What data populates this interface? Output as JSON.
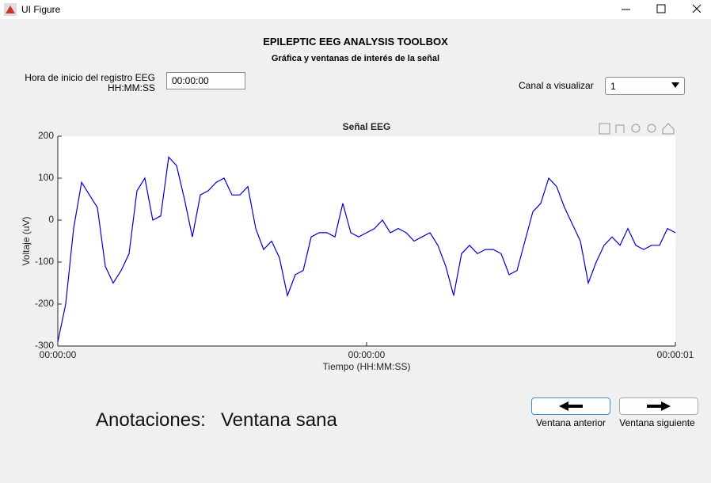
{
  "window": {
    "title": "UI Figure"
  },
  "header": {
    "title": "EPILEPTIC EEG ANALYSIS TOOLBOX",
    "subtitle": "Gráfica y ventanas de interés de la señal"
  },
  "controls": {
    "start_label": [
      "Hora de inicio del registro EEG",
      "HH:MM:SS"
    ],
    "start_value": "00:00:00",
    "channel_label": "Canal a visualizar",
    "channel_value": "1"
  },
  "chart_data": {
    "type": "line",
    "title": "Señal EEG",
    "x_label": "Tiempo (HH:MM:SS)",
    "y_label": "Voltaje (uV)",
    "x": [
      0,
      0.0128,
      0.0256,
      0.0385,
      0.0513,
      0.0641,
      0.0769,
      0.0897,
      0.1026,
      0.1154,
      0.1282,
      0.141,
      0.1538,
      0.1667,
      0.1795,
      0.1923,
      0.2051,
      0.2179,
      0.2308,
      0.2436,
      0.2564,
      0.2692,
      0.2821,
      0.2949,
      0.3077,
      0.3205,
      0.3333,
      0.3462,
      0.359,
      0.3718,
      0.3846,
      0.3974,
      0.4103,
      0.4231,
      0.4359,
      0.4487,
      0.4615,
      0.4744,
      0.4872,
      0.5,
      0.5128,
      0.5256,
      0.5385,
      0.5513,
      0.5641,
      0.5769,
      0.5897,
      0.6026,
      0.6154,
      0.6282,
      0.641,
      0.6538,
      0.6667,
      0.6795,
      0.6923,
      0.7051,
      0.7179,
      0.7308,
      0.7436,
      0.7564,
      0.7692,
      0.7821,
      0.7949,
      0.8077,
      0.8205,
      0.8333,
      0.8462,
      0.859,
      0.8718,
      0.8846,
      0.8974,
      0.9103,
      0.9231,
      0.9359,
      0.9487,
      0.9615,
      0.9744,
      0.9872,
      1
    ],
    "series": [
      {
        "color": "#0000cd",
        "values": [
          -290,
          -200,
          -20,
          90,
          60,
          30,
          -110,
          -150,
          -120,
          -80,
          70,
          100,
          0,
          10,
          150,
          130,
          50,
          -40,
          60,
          70,
          90,
          100,
          60,
          60,
          80,
          -20,
          -70,
          -50,
          -90,
          -180,
          -130,
          -120,
          -40,
          -30,
          -30,
          -40,
          40,
          -30,
          -40,
          -30,
          -20,
          0,
          -30,
          -20,
          -30,
          -50,
          -40,
          -30,
          -60,
          -110,
          -180,
          -80,
          -60,
          -80,
          -70,
          -70,
          -80,
          -130,
          -120,
          -50,
          20,
          40,
          100,
          80,
          30,
          -10,
          -50,
          -150,
          -100,
          -60,
          -40,
          -60,
          -20,
          -60,
          -70,
          -60,
          -60,
          -20,
          -30
        ]
      }
    ],
    "xlim": [
      0,
      1
    ],
    "xticks": [
      {
        "value": 0,
        "label": "00:00:00"
      },
      {
        "value": 0.5,
        "label": "00:00:00"
      },
      {
        "value": 1,
        "label": "00:00:01"
      }
    ],
    "ylim": [
      -300,
      200
    ],
    "yticks": [
      -300,
      -200,
      -100,
      0,
      100,
      200
    ]
  },
  "annotations": {
    "label": "Anotaciones:",
    "value": "Ventana sana"
  },
  "buttons": [
    "Ventana anterior",
    "Ventana siguiente"
  ]
}
